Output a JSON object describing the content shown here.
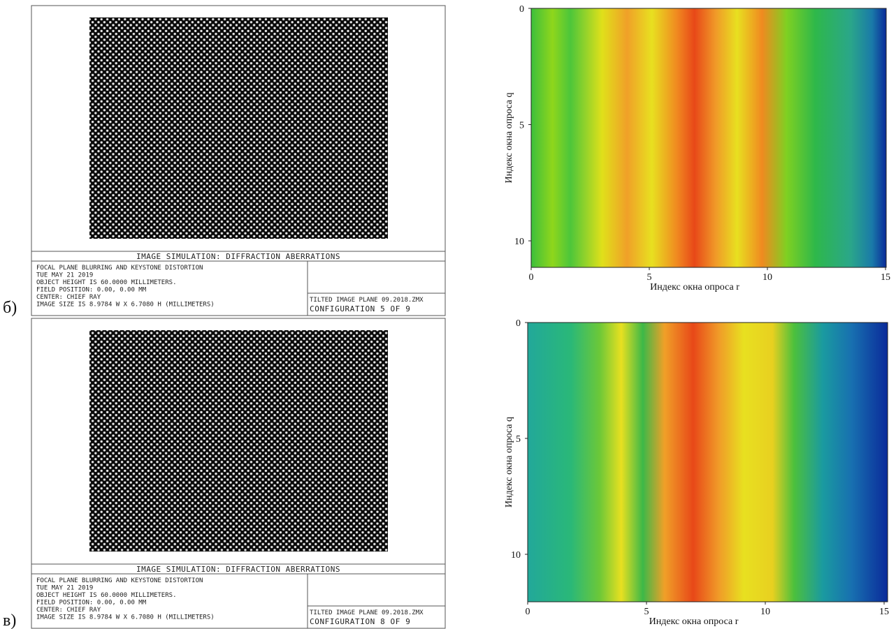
{
  "panels": [
    {
      "label": "б)",
      "image": {
        "title": "IMAGE SIMULATION: DIFFRACTION ABERRATIONS",
        "info": [
          "FOCAL PLANE BLURRING AND KEYSTONE DISTORTION",
          "TUE MAY 21 2019",
          "OBJECT HEIGHT IS 60.0000 MILLIMETERS.",
          "FIELD POSITION: 0.00, 0.00 MM",
          "CENTER: CHIEF RAY",
          "IMAGE SIZE IS 8.9784 W X 6.7080 H (MILLIMETERS)"
        ],
        "file": "TILTED IMAGE PLANE 09.2018.ZMX",
        "configuration": "CONFIGURATION 5 OF 9"
      },
      "plot": {
        "x_label": "Индекс окна опроса r",
        "y_label": "Индекс окна опроса q",
        "x_ticks": [
          "0",
          "5",
          "10",
          "15"
        ],
        "y_ticks": [
          "0",
          "5",
          "10"
        ]
      }
    },
    {
      "label": "в)",
      "image": {
        "title": "IMAGE SIMULATION: DIFFRACTION ABERRATIONS",
        "info": [
          "FOCAL PLANE BLURRING AND KEYSTONE DISTORTION",
          "TUE MAY 21 2019",
          "OBJECT HEIGHT IS 60.0000 MILLIMETERS.",
          "FIELD POSITION: 0.00, 0.00 MM",
          "CENTER: CHIEF RAY",
          "IMAGE SIZE IS 8.9784 W X 6.7080 H (MILLIMETERS)"
        ],
        "file": "TILTED IMAGE PLANE 09.2018.ZMX",
        "configuration": "CONFIGURATION 8 OF 9"
      },
      "plot": {
        "x_label": "Индекс окна опроса r",
        "y_label": "Индекс окна опроса q",
        "x_ticks": [
          "0",
          "5",
          "10",
          "15"
        ],
        "y_ticks": [
          "0",
          "5",
          "10"
        ]
      }
    }
  ]
}
